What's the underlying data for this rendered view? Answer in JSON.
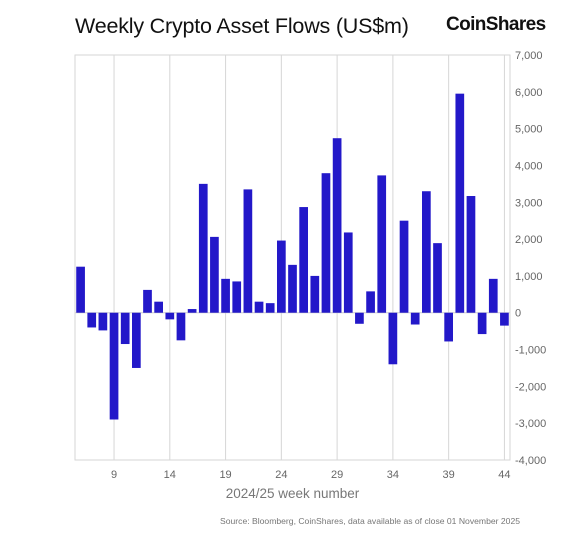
{
  "header": {
    "title": "Weekly Crypto Asset Flows (US$m)",
    "brand": "CoinShares"
  },
  "footer": {
    "source": "Source: Bloomberg, CoinShares, data available as of close 01 November 2025"
  },
  "colors": {
    "bar": "#2318c9",
    "grid": "#d6d6d6",
    "axis": "#666666"
  },
  "chart_data": {
    "type": "bar",
    "title": "Weekly Crypto Asset Flows (US$m)",
    "xlabel": "2024/25 week number",
    "ylabel": "",
    "ylim": [
      -4000,
      7000
    ],
    "yticks": [
      7000,
      6000,
      5000,
      4000,
      3000,
      2000,
      1000,
      0,
      -1000,
      -2000,
      -3000,
      -4000
    ],
    "ytick_labels": [
      "7,000",
      "6,000",
      "5,000",
      "4,000",
      "3,000",
      "2,000",
      "1,000",
      "0",
      "-1,000",
      "-2,000",
      "-3,000",
      "-4,000"
    ],
    "xlim": [
      5.5,
      44.5
    ],
    "xticks": [
      9,
      14,
      19,
      24,
      29,
      34,
      39,
      44
    ],
    "grid": true,
    "series": [
      {
        "weeks": [
          6,
          7,
          8,
          9,
          10,
          11,
          12,
          13,
          14,
          15,
          16,
          17,
          18,
          19,
          20,
          21,
          22,
          23,
          24,
          25,
          26,
          27,
          28,
          29,
          30,
          31,
          32,
          33,
          34,
          35,
          36,
          37,
          38,
          39,
          40,
          41,
          42,
          43,
          44
        ],
        "values": [
          1250,
          -400,
          -480,
          -2900,
          -850,
          -1500,
          620,
          300,
          -180,
          -750,
          100,
          3500,
          2060,
          920,
          850,
          3350,
          300,
          260,
          1960,
          1300,
          2870,
          1000,
          3790,
          4740,
          2180,
          -300,
          580,
          3730,
          -1400,
          2500,
          -320,
          3300,
          1890,
          -780,
          5950,
          3170,
          -580,
          920,
          -350
        ]
      }
    ]
  }
}
